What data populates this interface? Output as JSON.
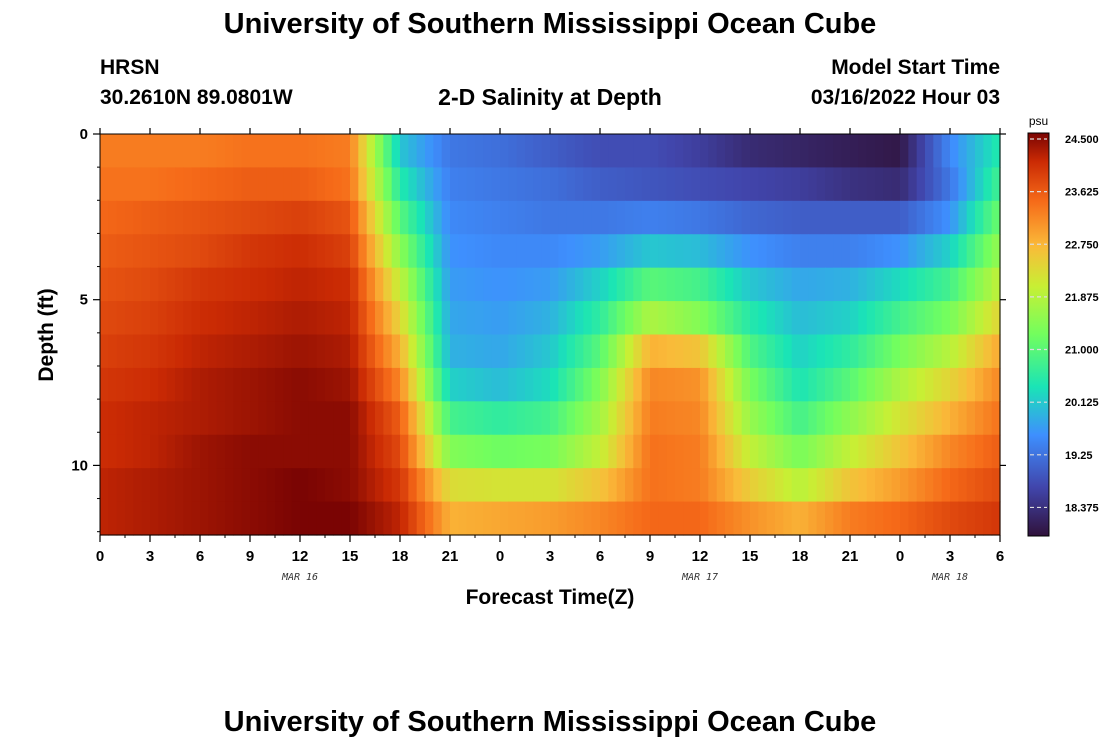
{
  "page": {
    "title_top": "University of Southern Mississippi Ocean Cube",
    "title_bottom": "University of Southern Mississippi Ocean Cube",
    "station": "HRSN",
    "coords": "30.2610N  89.0801W",
    "plot_title": "2-D Salinity at Depth",
    "model_start_label": "Model Start Time",
    "model_start_value": "03/16/2022 Hour 03"
  },
  "chart_data": {
    "type": "heatmap",
    "title": "2-D Salinity at Depth",
    "xlabel": "Forecast Time(Z)",
    "ylabel": "Depth (ft)",
    "x_range_hours": [
      0,
      54
    ],
    "y_range_ft": [
      0,
      12.1
    ],
    "x_ticks": [
      "0",
      "3",
      "6",
      "9",
      "12",
      "15",
      "18",
      "21",
      "0",
      "3",
      "6",
      "9",
      "12",
      "15",
      "18",
      "21",
      "0",
      "3",
      "6"
    ],
    "x_tick_hours": [
      0,
      3,
      6,
      9,
      12,
      15,
      18,
      21,
      24,
      27,
      30,
      33,
      36,
      39,
      42,
      45,
      48,
      51,
      54
    ],
    "date_labels": [
      {
        "text": "MAR 16",
        "hour": 12
      },
      {
        "text": "MAR 17",
        "hour": 36
      },
      {
        "text": "MAR 18",
        "hour": 51
      }
    ],
    "y_ticks": [
      "0",
      "5",
      "10"
    ],
    "y_tick_values": [
      0,
      5,
      10
    ],
    "colorbar": {
      "units": "psu",
      "min": 17.9,
      "max": 24.6,
      "tick_values": [
        24.5,
        23.625,
        22.75,
        21.875,
        21.0,
        20.125,
        19.25,
        18.375
      ],
      "tick_labels": [
        "24.500",
        "23.625",
        "22.750",
        "21.875",
        "21.000",
        "20.125",
        "19.25",
        "18.375"
      ]
    },
    "depth_layers_ft": [
      0.5,
      1.5,
      2.5,
      3.5,
      4.5,
      5.5,
      6.5,
      7.5,
      8.5,
      9.5,
      10.5,
      11.5
    ],
    "salinity_grid_psu": [
      [
        23.3,
        23.3,
        23.3,
        23.4,
        23.4,
        23.3,
        20.1,
        19.3,
        19.2,
        19.0,
        18.8,
        18.8,
        18.6,
        18.3,
        18.2,
        18.1,
        18.0,
        19.5,
        20.5
      ],
      [
        23.4,
        23.4,
        23.5,
        23.6,
        23.6,
        23.4,
        20.5,
        19.4,
        19.3,
        19.2,
        19.0,
        18.9,
        18.8,
        18.7,
        18.6,
        18.4,
        18.3,
        19.3,
        20.8
      ],
      [
        23.5,
        23.6,
        23.7,
        23.8,
        23.9,
        23.7,
        21.0,
        19.5,
        19.4,
        19.3,
        19.3,
        19.4,
        19.3,
        19.1,
        19.0,
        19.0,
        19.0,
        19.6,
        21.2
      ],
      [
        23.6,
        23.7,
        23.8,
        24.0,
        24.1,
        23.9,
        21.5,
        19.6,
        19.5,
        19.5,
        19.7,
        20.1,
        20.0,
        19.6,
        19.4,
        19.4,
        19.6,
        20.2,
        21.6
      ],
      [
        23.7,
        23.8,
        24.0,
        24.1,
        24.2,
        24.1,
        22.0,
        19.7,
        19.6,
        19.7,
        20.2,
        21.0,
        20.8,
        20.1,
        19.8,
        19.9,
        20.3,
        20.8,
        22.0
      ],
      [
        23.8,
        23.9,
        24.1,
        24.2,
        24.3,
        24.2,
        22.4,
        19.8,
        19.7,
        19.9,
        20.6,
        21.8,
        21.4,
        20.5,
        20.0,
        20.2,
        20.8,
        21.3,
        22.4
      ],
      [
        23.9,
        24.0,
        24.2,
        24.3,
        24.4,
        24.3,
        22.8,
        19.9,
        19.8,
        20.1,
        21.0,
        22.8,
        22.6,
        20.9,
        20.2,
        20.6,
        21.3,
        21.9,
        22.9
      ],
      [
        24.0,
        24.1,
        24.3,
        24.4,
        24.5,
        24.4,
        23.2,
        20.2,
        20.0,
        20.3,
        21.4,
        23.2,
        23.1,
        21.3,
        20.4,
        21.0,
        21.8,
        22.4,
        23.2
      ],
      [
        24.1,
        24.2,
        24.3,
        24.4,
        24.5,
        24.5,
        23.6,
        20.8,
        20.6,
        20.8,
        21.7,
        23.3,
        23.2,
        21.6,
        20.8,
        21.5,
        22.2,
        22.8,
        23.4
      ],
      [
        24.1,
        24.2,
        24.4,
        24.5,
        24.5,
        24.5,
        23.8,
        21.4,
        21.2,
        21.3,
        22.0,
        23.4,
        23.3,
        22.0,
        21.3,
        22.0,
        22.6,
        23.2,
        23.6
      ],
      [
        24.2,
        24.3,
        24.4,
        24.5,
        24.6,
        24.5,
        24.0,
        22.3,
        22.2,
        22.2,
        22.6,
        23.4,
        23.3,
        22.5,
        21.9,
        22.6,
        23.0,
        23.5,
        23.8
      ],
      [
        24.2,
        24.3,
        24.4,
        24.5,
        24.6,
        24.6,
        24.2,
        22.8,
        22.9,
        23.0,
        23.2,
        23.5,
        23.5,
        23.1,
        22.8,
        23.3,
        23.5,
        23.8,
        24.0
      ]
    ]
  }
}
